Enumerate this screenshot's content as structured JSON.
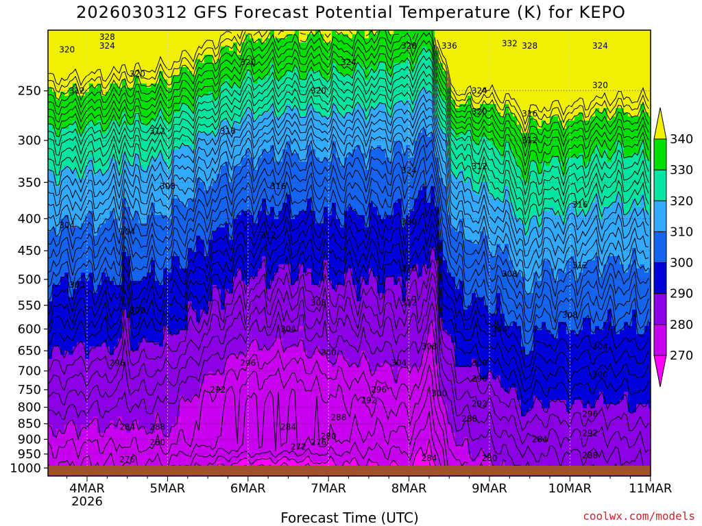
{
  "title": "2026030312 GFS Forecast Potential Temperature (K) for KEPO",
  "credit": "coolwx.com/models",
  "chart_data": {
    "type": "heatmap",
    "title": "2026030312 GFS Forecast Potential Temperature (K) for KEPO",
    "xlabel": "Forecast Time (UTC)",
    "ylabel": "",
    "x_ticks": [
      "4MAR",
      "5MAR",
      "6MAR",
      "7MAR",
      "8MAR",
      "9MAR",
      "10MAR",
      "11MAR"
    ],
    "x_sublabel": "2026",
    "y_ticks": [
      250,
      300,
      350,
      400,
      450,
      500,
      550,
      600,
      650,
      700,
      750,
      800,
      850,
      900,
      950,
      1000
    ],
    "ylim_hpa": [
      1030,
      200
    ],
    "colorbar": {
      "labels": [
        270,
        280,
        290,
        300,
        310,
        320,
        330,
        340
      ],
      "colors": [
        "#ff00ff",
        "#c800f0",
        "#8c00e6",
        "#0000dc",
        "#1464f0",
        "#32aaff",
        "#00e6a0",
        "#00e000",
        "#f0f000"
      ]
    },
    "contour_interval": 2,
    "contour_labels": [
      {
        "x": "3MAR 18Z",
        "p": 215,
        "v": 320
      },
      {
        "x": "4MAR 06Z",
        "p": 205,
        "v": 328
      },
      {
        "x": "4MAR 06Z",
        "p": 212,
        "v": 324
      },
      {
        "x": "4MAR 15Z",
        "p": 235,
        "v": 320
      },
      {
        "x": "3MAR 21Z",
        "p": 250,
        "v": 312
      },
      {
        "x": "4MAR 21Z",
        "p": 290,
        "v": 312
      },
      {
        "x": "5MAR 18Z",
        "p": 290,
        "v": 316
      },
      {
        "x": "6MAR 00Z",
        "p": 225,
        "v": 320
      },
      {
        "x": "7MAR 06Z",
        "p": 225,
        "v": 324
      },
      {
        "x": "6MAR 21Z",
        "p": 250,
        "v": 320
      },
      {
        "x": "8MAR 00Z",
        "p": 212,
        "v": 328
      },
      {
        "x": "8MAR 12Z",
        "p": 212,
        "v": 336
      },
      {
        "x": "9MAR 06Z",
        "p": 210,
        "v": 332
      },
      {
        "x": "9MAR 12Z",
        "p": 212,
        "v": 328
      },
      {
        "x": "10MAR 09Z",
        "p": 212,
        "v": 324
      },
      {
        "x": "10MAR 09Z",
        "p": 245,
        "v": 320
      },
      {
        "x": "8MAR 21Z",
        "p": 250,
        "v": 324
      },
      {
        "x": "8MAR 21Z",
        "p": 270,
        "v": 320
      },
      {
        "x": "9MAR 12Z",
        "p": 272,
        "v": 316
      },
      {
        "x": "9MAR 12Z",
        "p": 300,
        "v": 312
      },
      {
        "x": "8MAR 21Z",
        "p": 330,
        "v": 312
      },
      {
        "x": "8MAR 00Z",
        "p": 335,
        "v": 324
      },
      {
        "x": "10MAR 03Z",
        "p": 380,
        "v": 316
      },
      {
        "x": "6MAR 09Z",
        "p": 355,
        "v": 316
      },
      {
        "x": "5MAR 00Z",
        "p": 355,
        "v": 308
      },
      {
        "x": "3MAR 18Z",
        "p": 410,
        "v": 304
      },
      {
        "x": "4MAR 12Z",
        "p": 420,
        "v": 304
      },
      {
        "x": "6MAR 06Z",
        "p": 425,
        "v": 312
      },
      {
        "x": "8MAR 00Z",
        "p": 405,
        "v": 320
      },
      {
        "x": "8MAR 00Z",
        "p": 480,
        "v": 316
      },
      {
        "x": "10MAR 03Z",
        "p": 475,
        "v": 312
      },
      {
        "x": "9MAR 06Z",
        "p": 490,
        "v": 308
      },
      {
        "x": "3MAR 21Z",
        "p": 510,
        "v": 300
      },
      {
        "x": "4MAR 15Z",
        "p": 560,
        "v": 300
      },
      {
        "x": "6MAR 21Z",
        "p": 545,
        "v": 308
      },
      {
        "x": "8MAR 00Z",
        "p": 545,
        "v": 312
      },
      {
        "x": "6MAR 12Z",
        "p": 600,
        "v": 304
      },
      {
        "x": "10MAR 00Z",
        "p": 570,
        "v": 308
      },
      {
        "x": "9MAR 03Z",
        "p": 600,
        "v": 304
      },
      {
        "x": "8MAR 06Z",
        "p": 640,
        "v": 308
      },
      {
        "x": "4MAR 09Z",
        "p": 680,
        "v": 296
      },
      {
        "x": "6MAR 00Z",
        "p": 680,
        "v": 296
      },
      {
        "x": "7MAR 00Z",
        "p": 655,
        "v": 300
      },
      {
        "x": "7MAR 21Z",
        "p": 680,
        "v": 304
      },
      {
        "x": "8MAR 21Z",
        "p": 680,
        "v": 300
      },
      {
        "x": "10MAR 09Z",
        "p": 640,
        "v": 304
      },
      {
        "x": "10MAR 09Z",
        "p": 710,
        "v": 300
      },
      {
        "x": "8MAR 21Z",
        "p": 720,
        "v": 296
      },
      {
        "x": "5MAR 15Z",
        "p": 750,
        "v": 292
      },
      {
        "x": "7MAR 15Z",
        "p": 750,
        "v": 296
      },
      {
        "x": "7MAR 12Z",
        "p": 780,
        "v": 292
      },
      {
        "x": "8MAR 09Z",
        "p": 760,
        "v": 300
      },
      {
        "x": "8MAR 21Z",
        "p": 790,
        "v": 292
      },
      {
        "x": "10MAR 06Z",
        "p": 820,
        "v": 296
      },
      {
        "x": "7MAR 03Z",
        "p": 830,
        "v": 288
      },
      {
        "x": "4MAR 12Z",
        "p": 860,
        "v": 284
      },
      {
        "x": "4MAR 21Z",
        "p": 860,
        "v": 288
      },
      {
        "x": "6MAR 12Z",
        "p": 860,
        "v": 284
      },
      {
        "x": "8MAR 18Z",
        "p": 835,
        "v": 288
      },
      {
        "x": "9MAR 15Z",
        "p": 900,
        "v": 284
      },
      {
        "x": "10MAR 06Z",
        "p": 880,
        "v": 292
      },
      {
        "x": "4MAR 21Z",
        "p": 910,
        "v": 280
      },
      {
        "x": "6MAR 15Z",
        "p": 925,
        "v": 272
      },
      {
        "x": "6MAR 21Z",
        "p": 910,
        "v": 276
      },
      {
        "x": "7MAR 00Z",
        "p": 890,
        "v": 280
      },
      {
        "x": "4MAR 12Z",
        "p": 970,
        "v": 276
      },
      {
        "x": "8MAR 06Z",
        "p": 965,
        "v": 284
      },
      {
        "x": "9MAR 00Z",
        "p": 965,
        "v": 280
      },
      {
        "x": "10MAR 06Z",
        "p": 955,
        "v": 288
      }
    ]
  }
}
